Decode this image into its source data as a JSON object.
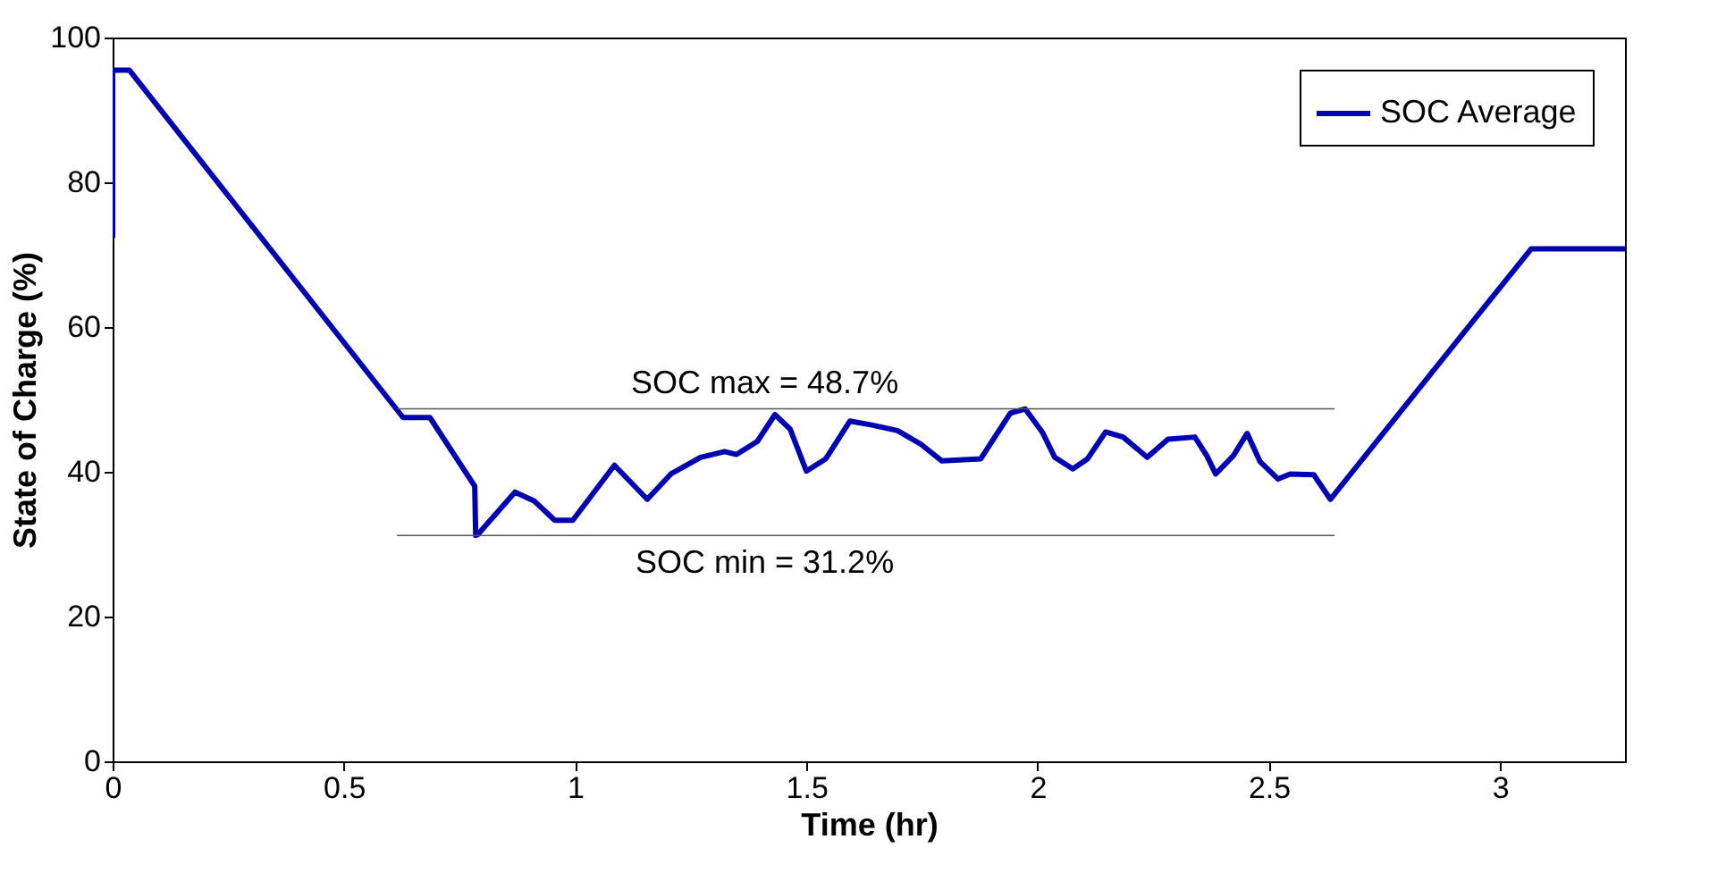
{
  "chart_data": {
    "type": "line",
    "xlabel": "Time (hr)",
    "ylabel": "State of Charge (%)",
    "xlim": [
      0,
      3.27
    ],
    "xticks": [
      0,
      0.5,
      1,
      1.5,
      2,
      2.5,
      3
    ],
    "ylim": [
      0,
      100
    ],
    "yticks": [
      0,
      20,
      40,
      60,
      80,
      100
    ],
    "grid": false,
    "legend": "top right",
    "line_style": "solid",
    "marker": "none",
    "series": [
      {
        "name": "SOC Average",
        "color": "#0000b3",
        "x": [
          0,
          0,
          0.036,
          0.628,
          0.686,
          0.783,
          0.785,
          0.789,
          0.87,
          0.911,
          0.956,
          0.995,
          1.085,
          1.156,
          1.207,
          1.271,
          1.323,
          1.349,
          1.394,
          1.432,
          1.465,
          1.5,
          1.542,
          1.594,
          1.639,
          1.697,
          1.748,
          1.793,
          1.877,
          1.941,
          1.973,
          2.01,
          2.037,
          2.076,
          2.108,
          2.147,
          2.185,
          2.237,
          2.282,
          2.34,
          2.366,
          2.385,
          2.423,
          2.453,
          2.481,
          2.52,
          2.546,
          2.597,
          2.633,
          2.955,
          3.067,
          3.27
        ],
        "values": [
          72.3,
          95.5,
          95.5,
          47.5,
          47.5,
          38,
          31.2,
          31.3,
          37.2,
          36.0,
          33.3,
          33.3,
          40.9,
          36.2,
          39.7,
          42.0,
          42.8,
          42.4,
          44.2,
          47.9,
          45.9,
          40.1,
          41.8,
          47.0,
          46.5,
          45.7,
          43.8,
          41.5,
          41.8,
          48.1,
          48.7,
          45.5,
          42.0,
          40.4,
          41.8,
          45.5,
          44.8,
          42.0,
          44.5,
          44.8,
          42.2,
          39.7,
          42.2,
          45.3,
          41.4,
          39.0,
          39.7,
          39.6,
          36.2,
          61.9,
          70.8,
          70.8
        ]
      },
      {
        "color": "#555555",
        "x": [
          0.615,
          2.642
        ],
        "values": [
          48.7,
          48.7
        ]
      },
      {
        "color": "#555555",
        "x": [
          0.615,
          2.642
        ],
        "values": [
          31.2,
          31.2
        ]
      }
    ],
    "annotations": [
      {
        "text": "SOC max = 48.7%",
        "x": 1.41,
        "y": 48.7
      },
      {
        "text": "SOC min = 31.2%",
        "x": 1.41,
        "y": 31.2
      }
    ]
  }
}
